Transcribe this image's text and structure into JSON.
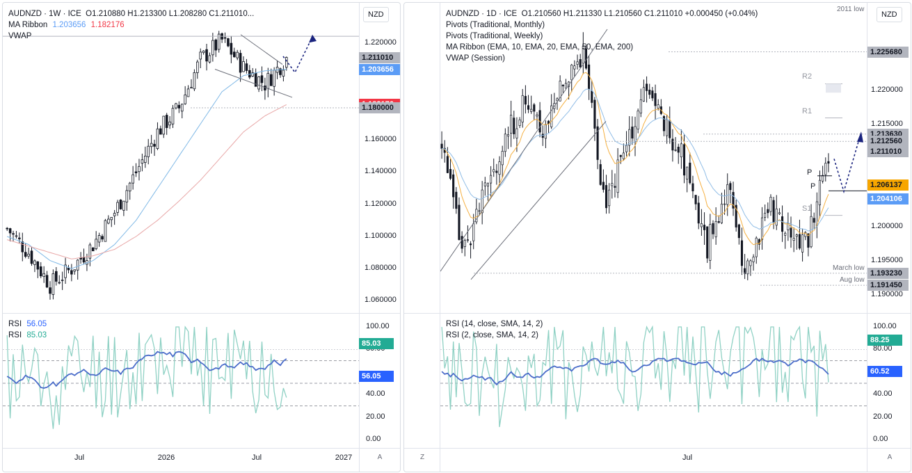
{
  "left": {
    "currency": "NZD",
    "title_line": "AUDNZD · 1W · ICE",
    "ohlc": "O1.210880  H1.213300  L1.208280  C1.211010...",
    "ma_label": "MA Ribbon",
    "ma_values": [
      "1.203656",
      "1.182176"
    ],
    "vwap_label": "VWAP",
    "price_ticks": [
      "1.220000",
      "1.160000",
      "1.140000",
      "1.120000",
      "1.100000",
      "1.080000",
      "1.060000"
    ],
    "tags": [
      {
        "text": "1.211010",
        "color": "#b2b5be"
      },
      {
        "text": "1.203656",
        "color": "#5b9cf6"
      },
      {
        "text": "1.182176",
        "color": "#f23645"
      },
      {
        "text": "1.180000",
        "color": "#b2b5be"
      }
    ],
    "time_ticks": [
      "Jul",
      "2026",
      "Jul",
      "2027"
    ],
    "rsi_labels": [
      {
        "name": "RSI",
        "value": "56.05"
      },
      {
        "name": "RSI",
        "value": "85.03"
      }
    ],
    "rsi_tags": [
      {
        "text": "85.03",
        "color": "#22ab94"
      },
      {
        "text": "56.05",
        "color": "#2962ff"
      }
    ],
    "rsi_ticks": [
      "100.00",
      "80.00",
      "60.00",
      "40.00",
      "20.00",
      "0.00"
    ],
    "corner_btn": "A"
  },
  "right": {
    "currency": "NZD",
    "title_line": "AUDNZD · 1D · ICE",
    "ohlc": "O1.210560  H1.211330  L1.210560  C1.211010  +0.000450 (+0.04%)",
    "indicators": [
      "Pivots (Traditional, Monthly)",
      "Pivots (Traditional, Weekly)",
      "MA Ribbon (EMA, 10, EMA, 20, EMA, 50, EMA, 200)",
      "VWAP (Session)"
    ],
    "corner_note": "2011 low",
    "price_ticks": [
      "1.220000",
      "1.215000",
      "1.200000",
      "1.195000",
      "1.190000"
    ],
    "tags": [
      {
        "text": "1.225680",
        "color": "#b2b5be"
      },
      {
        "text": "1.213630",
        "color": "#b2b5be"
      },
      {
        "text": "1.212560",
        "color": "#b2b5be"
      },
      {
        "text": "1.211010",
        "color": "#b2b5be"
      },
      {
        "text": "1.206137",
        "color": "#f7a600"
      },
      {
        "text": "1.204106",
        "color": "#5b9cf6"
      },
      {
        "text": "1.193230",
        "color": "#b2b5be"
      },
      {
        "text": "1.191450",
        "color": "#b2b5be"
      }
    ],
    "pivot_labels": [
      "R2",
      "R1",
      "P",
      "P",
      "S1"
    ],
    "notes": [
      "March low",
      "Aug low"
    ],
    "time_ticks": [
      "Jul"
    ],
    "rsi_labels": [
      "RSI (14, close, SMA, 14, 2)",
      "RSI (2, close, SMA, 14, 2)"
    ],
    "rsi_tags": [
      {
        "text": "88.25",
        "color": "#22ab94"
      },
      {
        "text": "60.52",
        "color": "#2962ff"
      }
    ],
    "rsi_ticks": [
      "100.00",
      "80.00",
      "60.00",
      "40.00",
      "20.00",
      "0.00"
    ],
    "corner_btn_left": "Z",
    "corner_btn_right": "A"
  },
  "chart_data": [
    {
      "type": "line",
      "title": "AUDNZD · 1W · ICE",
      "xlabel": "",
      "ylabel": "",
      "ylim": [
        1.055,
        1.228
      ],
      "x": [
        "",
        "",
        "",
        "Jul",
        "",
        "",
        "",
        "",
        "2026",
        "",
        "",
        "",
        "Jul",
        ""
      ],
      "series": [
        {
          "name": "Close",
          "values": [
            1.105,
            1.09,
            1.07,
            1.08,
            1.095,
            1.115,
            1.14,
            1.165,
            1.18,
            1.21,
            1.222,
            1.205,
            1.195,
            1.211
          ]
        },
        {
          "name": "MA Ribbon",
          "values": [
            1.1,
            1.095,
            1.085,
            1.08,
            1.085,
            1.095,
            1.11,
            1.13,
            1.15,
            1.17,
            1.19,
            1.2,
            1.203,
            1.204
          ]
        },
        {
          "name": "MA Ribbon",
          "values": [
            1.098,
            1.094,
            1.09,
            1.086,
            1.088,
            1.092,
            1.1,
            1.11,
            1.122,
            1.135,
            1.15,
            1.165,
            1.175,
            1.182
          ]
        }
      ],
      "annotations": [
        "1.211010",
        "1.203656",
        "1.182176",
        "1.180000"
      ]
    },
    {
      "type": "line",
      "title": "AUDNZD · 1D · ICE",
      "xlabel": "",
      "ylabel": "",
      "ylim": [
        1.188,
        1.229
      ],
      "x": [
        "",
        "",
        "",
        "",
        "",
        "",
        "",
        "",
        "",
        "",
        "Jul",
        "",
        "",
        "",
        "",
        "",
        "",
        "",
        "",
        ""
      ],
      "series": [
        {
          "name": "Close",
          "values": [
            1.213,
            1.196,
            1.204,
            1.212,
            1.218,
            1.214,
            1.222,
            1.226,
            1.203,
            1.211,
            1.22,
            1.215,
            1.209,
            1.197,
            1.206,
            1.193,
            1.203,
            1.2,
            1.198,
            1.211
          ]
        }
      ],
      "annotations": [
        "R2",
        "R1",
        "P",
        "S1",
        "March low",
        "Aug low",
        "1.225680",
        "1.213630",
        "1.212560",
        "1.211010",
        "1.206137",
        "1.204106",
        "1.193230",
        "1.191450"
      ]
    }
  ]
}
